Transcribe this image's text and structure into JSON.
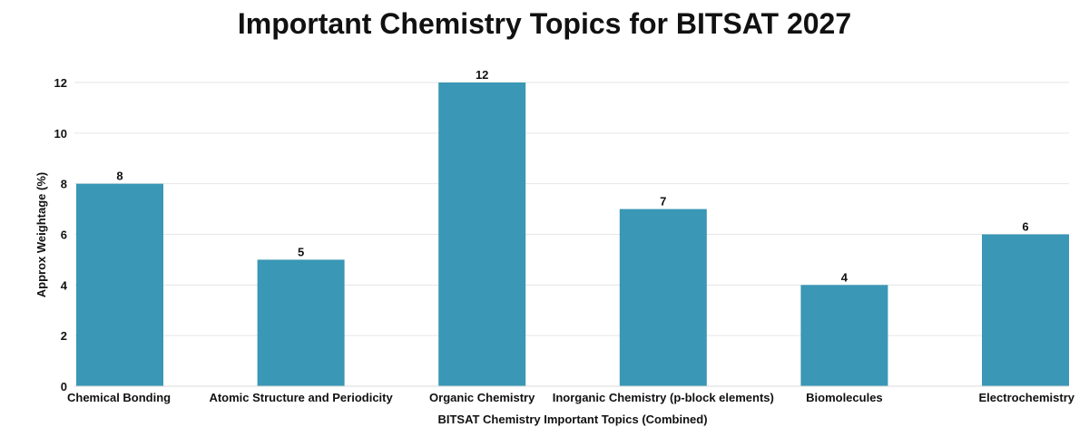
{
  "chart_data": {
    "type": "bar",
    "title": "Important Chemistry Topics for BITSAT 2027",
    "xlabel": "BITSAT Chemistry Important Topics (Combined)",
    "ylabel": "Approx Weightage (%)",
    "categories": [
      "Chemical Bonding",
      "Atomic Structure and Periodicity",
      "Organic Chemistry",
      "Inorganic Chemistry (p-block elements)",
      "Biomolecules",
      "Electrochemistry"
    ],
    "values": [
      8,
      5,
      12,
      7,
      4,
      6
    ],
    "data_labels": [
      "8",
      "5",
      "12",
      "7",
      "4",
      "6"
    ],
    "yticks": [
      "0",
      "2",
      "4",
      "6",
      "8",
      "10",
      "12"
    ],
    "ylim": [
      0,
      12
    ],
    "grid": true,
    "bar_color": "#3a97b5",
    "grid_color": "#e6e6e6"
  }
}
